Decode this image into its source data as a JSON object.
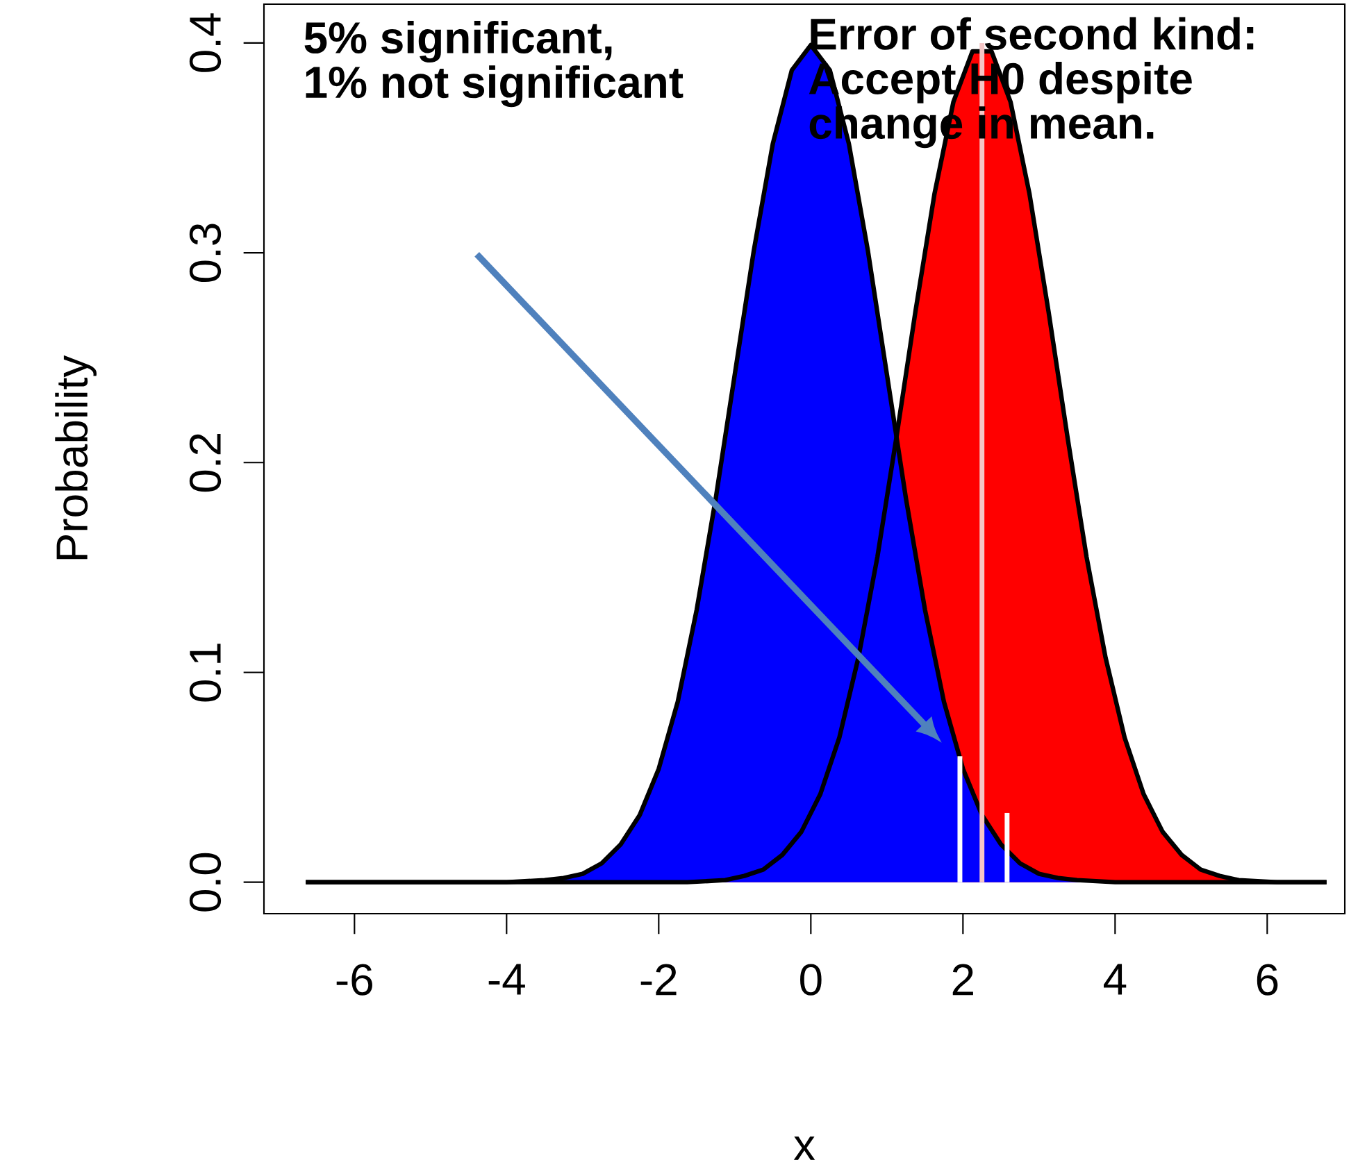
{
  "chart_data": {
    "type": "area",
    "xlabel": "x",
    "ylabel": "Probability",
    "xlim": [
      -7.19,
      7.02
    ],
    "ylim": [
      -0.015,
      0.4185
    ],
    "xticks": [
      -6,
      -4,
      -2,
      0,
      2,
      4,
      6
    ],
    "yticks": [
      {
        "value": 0,
        "label": "0.0"
      },
      0.1,
      0.2,
      0.3,
      0.4
    ],
    "series": [
      {
        "color": "#ff0000",
        "x": [
          -6.64,
          -1.625,
          -1.125,
          -0.875,
          -0.625,
          -0.375,
          -0.125,
          0.125,
          0.375,
          0.625,
          0.875,
          1.125,
          1.375,
          1.625,
          1.875,
          2.125,
          2.375,
          2.625,
          2.875,
          3.125,
          3.375,
          3.625,
          3.875,
          4.125,
          4.375,
          4.625,
          4.875,
          5.125,
          5.375,
          5.625,
          6.125,
          6.78
        ],
        "values": [
          0,
          0,
          0.001,
          0.003,
          0.006,
          0.013,
          0.024,
          0.042,
          0.069,
          0.107,
          0.155,
          0.212,
          0.272,
          0.328,
          0.372,
          0.396,
          0.396,
          0.372,
          0.328,
          0.272,
          0.212,
          0.155,
          0.107,
          0.069,
          0.042,
          0.024,
          0.013,
          0.006,
          0.003,
          0.001,
          0,
          0
        ]
      },
      {
        "color": "#0000ff",
        "x": [
          -6.64,
          -4,
          -3.5,
          -3.25,
          -3,
          -2.75,
          -2.5,
          -2.25,
          -2,
          -1.75,
          -1.5,
          -1.25,
          -1,
          -0.75,
          -0.5,
          -0.25,
          0,
          0.25,
          0.5,
          0.75,
          1,
          1.25,
          1.5,
          1.75,
          2,
          2.25,
          2.5,
          2.75,
          3,
          3.25,
          3.5,
          4,
          6.78
        ],
        "values": [
          0,
          0,
          0.001,
          0.002,
          0.004,
          0.009,
          0.018,
          0.032,
          0.054,
          0.086,
          0.13,
          0.183,
          0.242,
          0.301,
          0.352,
          0.387,
          0.399,
          0.387,
          0.352,
          0.301,
          0.242,
          0.183,
          0.13,
          0.086,
          0.054,
          0.032,
          0.018,
          0.009,
          0.004,
          0.002,
          0.001,
          0,
          0
        ]
      },
      {
        "type": "line",
        "color": "#ffffff",
        "x": [
          1.96,
          1.96
        ],
        "values": [
          0,
          0.06
        ]
      },
      {
        "type": "line",
        "color": "#ffffff",
        "x": [
          2.58,
          2.58
        ],
        "values": [
          0,
          0.033
        ]
      },
      {
        "type": "line",
        "color": "#f4c6c6",
        "x": [
          2.25,
          2.25
        ],
        "values": [
          0,
          0.4
        ]
      }
    ],
    "annotations": [
      "5% significant,",
      "1% not significant",
      "Error of second kind:",
      "Accept H0 despite",
      "change in mean."
    ]
  }
}
